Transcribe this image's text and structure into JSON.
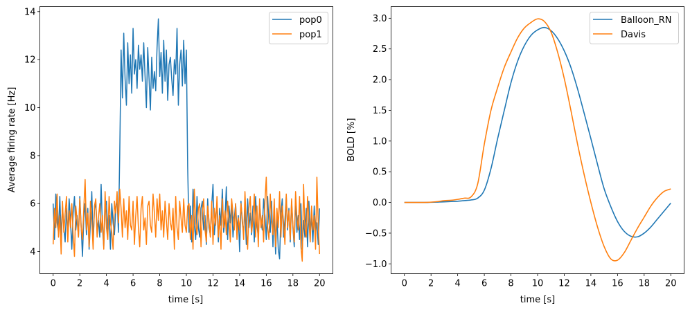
{
  "chart_data": [
    {
      "type": "line",
      "title": "",
      "xlabel": "time [s]",
      "ylabel": "Average firing rate [Hz]",
      "xlim": [
        -1.0,
        21.0
      ],
      "ylim": [
        3.08,
        14.21
      ],
      "xticks": [
        0,
        2,
        4,
        6,
        8,
        10,
        12,
        14,
        16,
        18,
        20
      ],
      "xtick_labels": [
        "0",
        "2",
        "4",
        "6",
        "8",
        "10",
        "12",
        "14",
        "16",
        "18",
        "20"
      ],
      "yticks": [
        4,
        6,
        8,
        10,
        12,
        14
      ],
      "ytick_labels": [
        "4",
        "6",
        "8",
        "10",
        "12",
        "14"
      ],
      "legend_position": "upper-right",
      "x_start": 0,
      "x_step": 0.1,
      "series": [
        {
          "name": "pop0",
          "color": "#1f77b4",
          "values": [
            6.0,
            4.5,
            6.4,
            5.2,
            4.8,
            6.3,
            4.6,
            5.9,
            5.0,
            4.4,
            5.8,
            4.7,
            6.2,
            5.3,
            4.1,
            5.6,
            6.3,
            4.9,
            5.5,
            4.6,
            6.3,
            5.1,
            3.8,
            5.4,
            6.0,
            4.7,
            5.8,
            4.1,
            5.2,
            6.5,
            4.4,
            5.7,
            6.1,
            4.9,
            5.3,
            4.6,
            6.8,
            5.0,
            4.2,
            5.9,
            6.1,
            4.8,
            5.5,
            4.1,
            6.0,
            5.2,
            4.7,
            5.8,
            6.2,
            4.8,
            8.1,
            12.4,
            10.4,
            13.1,
            11.2,
            10.1,
            12.7,
            11.0,
            12.2,
            10.6,
            13.3,
            11.4,
            12.0,
            10.8,
            12.6,
            11.6,
            12.2,
            11.1,
            12.7,
            11.3,
            10.0,
            12.5,
            11.2,
            9.9,
            12.1,
            10.8,
            11.5,
            10.7,
            12.5,
            13.7,
            11.3,
            12.3,
            10.6,
            12.8,
            11.1,
            12.4,
            10.3,
            11.8,
            12.1,
            11.2,
            10.5,
            12.0,
            11.4,
            13.3,
            10.1,
            11.8,
            12.4,
            10.9,
            12.8,
            11.0,
            12.4,
            7.5,
            4.8,
            5.9,
            4.4,
            6.6,
            5.1,
            4.5,
            6.3,
            5.0,
            4.6,
            5.8,
            6.1,
            4.9,
            5.5,
            4.3,
            6.2,
            5.0,
            4.7,
            5.9,
            6.8,
            4.7,
            5.4,
            6.0,
            4.4,
            5.8,
            5.1,
            6.6,
            4.8,
            5.3,
            6.7,
            4.5,
            5.9,
            5.2,
            6.1,
            4.6,
            5.4,
            6.0,
            4.9,
            5.5,
            4.0,
            6.1,
            5.2,
            4.8,
            5.8,
            4.3,
            6.2,
            5.0,
            5.6,
            4.7,
            5.9,
            4.4,
            6.3,
            5.1,
            4.6,
            6.0,
            5.3,
            4.9,
            6.2,
            5.5,
            4.5,
            6.3,
            5.2,
            4.8,
            6.1,
            4.2,
            5.7,
            3.9,
            5.5,
            4.1,
            3.7,
            5.6,
            6.2,
            4.6,
            5.3,
            6.3,
            4.9,
            5.8,
            4.4,
            6.1,
            5.0,
            4.2,
            6.2,
            4.8,
            5.5,
            4.5,
            6.0,
            4.1,
            5.3,
            4.6,
            5.8,
            4.2,
            6.1,
            4.9,
            5.4,
            4.4,
            5.9,
            4.8,
            5.2,
            4.3,
            5.8
          ]
        },
        {
          "name": "pop1",
          "color": "#ff7f0e",
          "values": [
            4.3,
            5.8,
            5.0,
            6.4,
            4.6,
            5.5,
            3.9,
            6.1,
            4.8,
            5.6,
            6.3,
            4.4,
            5.7,
            5.0,
            6.0,
            4.7,
            3.8,
            5.9,
            5.3,
            4.6,
            6.2,
            5.0,
            4.5,
            5.8,
            7.0,
            4.9,
            5.6,
            4.2,
            6.1,
            5.3,
            4.1,
            5.9,
            6.2,
            4.6,
            5.4,
            6.0,
            4.8,
            5.5,
            4.1,
            6.5,
            5.0,
            4.5,
            6.3,
            5.2,
            4.8,
            4.1,
            6.1,
            5.6,
            6.5,
            5.2,
            6.6,
            5.8,
            4.6,
            6.2,
            5.0,
            5.7,
            4.5,
            6.3,
            5.1,
            4.9,
            6.1,
            4.3,
            5.5,
            6.3,
            5.0,
            4.2,
            5.8,
            6.3,
            4.9,
            5.4,
            4.3,
            5.9,
            6.1,
            5.1,
            4.8,
            6.4,
            5.6,
            4.6,
            6.2,
            5.3,
            6.4,
            4.9,
            5.7,
            4.6,
            6.1,
            5.3,
            4.5,
            6.0,
            5.2,
            4.9,
            5.8,
            4.1,
            6.3,
            5.0,
            4.5,
            6.1,
            5.4,
            4.8,
            6.2,
            5.1,
            4.8,
            5.9,
            6.0,
            4.5,
            5.5,
            4.1,
            6.6,
            5.2,
            4.7,
            5.8,
            6.0,
            4.2,
            5.6,
            6.2,
            4.9,
            4.4,
            5.9,
            5.3,
            4.6,
            6.1,
            4.3,
            5.8,
            5.1,
            6.3,
            4.6,
            5.5,
            4.1,
            6.2,
            5.0,
            5.7,
            4.7,
            6.1,
            5.3,
            4.4,
            6.2,
            5.6,
            4.9,
            6.0,
            4.5,
            5.4,
            4.9,
            6.0,
            5.4,
            4.5,
            6.5,
            5.1,
            4.1,
            5.8,
            6.3,
            4.8,
            5.3,
            6.4,
            4.6,
            5.9,
            4.2,
            6.2,
            5.0,
            5.5,
            4.4,
            6.1,
            7.1,
            5.0,
            4.5,
            6.4,
            5.3,
            4.7,
            6.2,
            4.2,
            5.8,
            5.0,
            6.5,
            4.6,
            5.9,
            5.2,
            4.3,
            6.4,
            5.0,
            5.7,
            4.5,
            6.2,
            5.1,
            4.4,
            6.5,
            5.4,
            4.9,
            6.3,
            4.2,
            3.6,
            6.8,
            5.0,
            4.6,
            6.3,
            5.3,
            4.4,
            5.9,
            4.9,
            5.5,
            4.1,
            7.1,
            5.2,
            3.9
          ]
        }
      ]
    },
    {
      "type": "line",
      "title": "",
      "xlabel": "time [s]",
      "ylabel": "BOLD [%]",
      "xlim": [
        -1.0,
        21.0
      ],
      "ylim": [
        -1.16,
        3.19
      ],
      "xticks": [
        0,
        2,
        4,
        6,
        8,
        10,
        12,
        14,
        16,
        18,
        20
      ],
      "xtick_labels": [
        "0",
        "2",
        "4",
        "6",
        "8",
        "10",
        "12",
        "14",
        "16",
        "18",
        "20"
      ],
      "yticks": [
        -1.0,
        -0.5,
        0.0,
        0.5,
        1.0,
        1.5,
        2.0,
        2.5,
        3.0
      ],
      "ytick_labels": [
        "−1.0",
        "−0.5",
        "0.0",
        "0.5",
        "1.0",
        "1.5",
        "2.0",
        "2.5",
        "3.0"
      ],
      "legend_position": "upper-right",
      "x_start": 0,
      "x_step": 0.5,
      "series": [
        {
          "name": "Balloon_RN",
          "color": "#1f77b4",
          "values": [
            0,
            0,
            0,
            0,
            0.003,
            0.006,
            0.01,
            0.015,
            0.02,
            0.03,
            0.04,
            0.07,
            0.2,
            0.55,
            1.04,
            1.5,
            1.95,
            2.3,
            2.55,
            2.72,
            2.81,
            2.85,
            2.8,
            2.67,
            2.47,
            2.2,
            1.85,
            1.45,
            1.04,
            0.62,
            0.22,
            -0.07,
            -0.31,
            -0.47,
            -0.55,
            -0.56,
            -0.5,
            -0.4,
            -0.27,
            -0.14,
            -0.01
          ]
        },
        {
          "name": "Davis",
          "color": "#ff7f0e",
          "values": [
            0,
            0,
            0,
            0,
            0.005,
            0.015,
            0.03,
            0.035,
            0.05,
            0.07,
            0.09,
            0.3,
            0.95,
            1.5,
            1.87,
            2.2,
            2.45,
            2.68,
            2.84,
            2.93,
            2.99,
            2.95,
            2.78,
            2.45,
            2.02,
            1.5,
            0.95,
            0.45,
            0.0,
            -0.4,
            -0.72,
            -0.92,
            -0.94,
            -0.82,
            -0.62,
            -0.42,
            -0.24,
            -0.06,
            0.08,
            0.18,
            0.22
          ]
        }
      ]
    }
  ]
}
